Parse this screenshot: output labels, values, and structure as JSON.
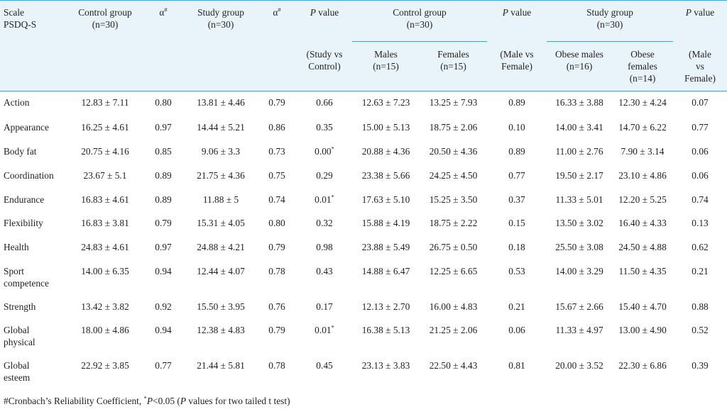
{
  "header": {
    "scale": [
      "Scale",
      "PSDQ-S"
    ],
    "control_group": [
      "Control group",
      "(n=30)"
    ],
    "alpha1": "α",
    "alpha_sup": "#",
    "study_group": [
      "Study group",
      "(n=30)"
    ],
    "alpha2": "α",
    "p_value_label": "P",
    "p_value_suffix": " value",
    "p1_sub": [
      "(Study vs",
      "Control)"
    ],
    "control_group2": [
      "Control group",
      "(n=30)"
    ],
    "males": [
      "Males",
      "(n=15)"
    ],
    "females": [
      "Females",
      "(n=15)"
    ],
    "p2_sub": [
      "(Male vs",
      "Female)"
    ],
    "study_group2": [
      "Study group",
      "(n=30)"
    ],
    "obese_males": [
      "Obese males",
      "(n=16)"
    ],
    "obese_females": [
      "Obese",
      "females",
      "(n=14)"
    ],
    "p3_sub": [
      "(Male",
      "vs",
      "Female)"
    ]
  },
  "rows": [
    {
      "scale": [
        "Action"
      ],
      "cg": "12.83 ± 7.11",
      "a1": "0.80",
      "sg": "13.81 ± 4.46",
      "a2": "0.79",
      "p1": "0.66",
      "p1s": "",
      "m": "12.63 ± 7.23",
      "f": "13.25 ± 7.93",
      "p2": "0.89",
      "om": "16.33 ± 3.88",
      "of": "12.30 ± 4.24",
      "p3": "0.07"
    },
    {
      "scale": [
        "Appearance"
      ],
      "cg": "16.25 ± 4.61",
      "a1": "0.97",
      "sg": "14.44 ± 5.21",
      "a2": "0.86",
      "p1": "0.35",
      "p1s": "",
      "m": "15.00 ± 5.13",
      "f": "18.75 ± 2.06",
      "p2": "0.10",
      "om": "14.00 ± 3.41",
      "of": "14.70 ± 6.22",
      "p3": "0.77"
    },
    {
      "scale": [
        "Body fat"
      ],
      "cg": "20.75 ± 4.16",
      "a1": "0.85",
      "sg": "9.06 ± 3.3",
      "a2": "0.73",
      "p1": "0.00",
      "p1s": "*",
      "m": "20.88 ± 4.36",
      "f": "20.50 ± 4.36",
      "p2": "0.89",
      "om": "11.00 ± 2.76",
      "of": "7.90 ± 3.14",
      "p3": "0.06"
    },
    {
      "scale": [
        "Coordination"
      ],
      "cg": "23.67 ± 5.1",
      "a1": "0.89",
      "sg": "21.75 ± 4.36",
      "a2": "0.75",
      "p1": "0.29",
      "p1s": "",
      "m": "23.38 ± 5.66",
      "f": "24.25 ± 4.50",
      "p2": "0.77",
      "om": "19.50 ± 2.17",
      "of": "23.10 ± 4.86",
      "p3": "0.06"
    },
    {
      "scale": [
        "Endurance"
      ],
      "cg": "16.83 ± 4.61",
      "a1": "0.89",
      "sg": "11.88 ± 5",
      "a2": "0.74",
      "p1": "0.01",
      "p1s": "*",
      "m": "17.63 ± 5.10",
      "f": "15.25 ± 3.50",
      "p2": "0.37",
      "om": "11.33 ± 5.01",
      "of": "12.20 ± 5.25",
      "p3": "0.74"
    },
    {
      "scale": [
        "Flexibility"
      ],
      "cg": "16.83 ± 3.81",
      "a1": "0.79",
      "sg": "15.31 ± 4.05",
      "a2": "0.80",
      "p1": "0.32",
      "p1s": "",
      "m": "15.88 ± 4.19",
      "f": "18.75 ± 2.22",
      "p2": "0.15",
      "om": "13.50 ± 3.02",
      "of": "16.40 ± 4.33",
      "p3": "0.13"
    },
    {
      "scale": [
        "Health"
      ],
      "cg": "24.83 ± 4.61",
      "a1": "0.97",
      "sg": "24.88 ± 4.21",
      "a2": "0.79",
      "p1": "0.98",
      "p1s": "",
      "m": "23.88 ± 5.49",
      "f": "26.75 ± 0.50",
      "p2": "0.18",
      "om": "25.50 ± 3.08",
      "of": "24.50 ± 4.88",
      "p3": "0.62"
    },
    {
      "scale": [
        "Sport",
        "competence"
      ],
      "cg": "14.00 ± 6.35",
      "a1": "0.94",
      "sg": "12.44 ± 4.07",
      "a2": "0.78",
      "p1": "0.43",
      "p1s": "",
      "m": "14.88 ± 6.47",
      "f": "12.25 ± 6.65",
      "p2": "0.53",
      "om": "14.00 ± 3.29",
      "of": "11.50 ± 4.35",
      "p3": "0.21"
    },
    {
      "scale": [
        "Strength"
      ],
      "cg": "13.42 ± 3.82",
      "a1": "0.92",
      "sg": "15.50 ± 3.95",
      "a2": "0.76",
      "p1": "0.17",
      "p1s": "",
      "m": "12.13 ± 2.70",
      "f": "16.00 ± 4.83",
      "p2": "0.21",
      "om": "15.67 ± 2.66",
      "of": "15.40 ± 4.70",
      "p3": "0.88"
    },
    {
      "scale": [
        "Global",
        "physical"
      ],
      "cg": "18.00 ± 4.86",
      "a1": "0.94",
      "sg": "12.38 ± 4.83",
      "a2": "0.79",
      "p1": "0.01",
      "p1s": "*",
      "m": "16.38 ± 5.13",
      "f": "21.25 ± 2.06",
      "p2": "0.06",
      "om": "11.33 ± 4.97",
      "of": "13.00 ± 4.90",
      "p3": "0.52"
    },
    {
      "scale": [
        "Global",
        "esteem"
      ],
      "cg": "22.92 ± 3.85",
      "a1": "0.77",
      "sg": "21.44 ± 5.81",
      "a2": "0.78",
      "p1": "0.45",
      "p1s": "",
      "m": "23.13 ± 3.83",
      "f": "22.50 ± 4.43",
      "p2": "0.81",
      "om": "20.00 ± 3.52",
      "of": "22.30 ± 6.86",
      "p3": "0.39"
    }
  ],
  "footnote": {
    "part1": "#Cronbach’s Reliability Coefficient, ",
    "sup": "*",
    "p_italic": "P",
    "part2": "<0.05 (",
    "p_italic2": "P",
    "part3": " values for two tailed t test)"
  },
  "colors": {
    "header_bg": "#e8f4fa",
    "rule": "#4aa3cf",
    "text": "#231f20"
  }
}
